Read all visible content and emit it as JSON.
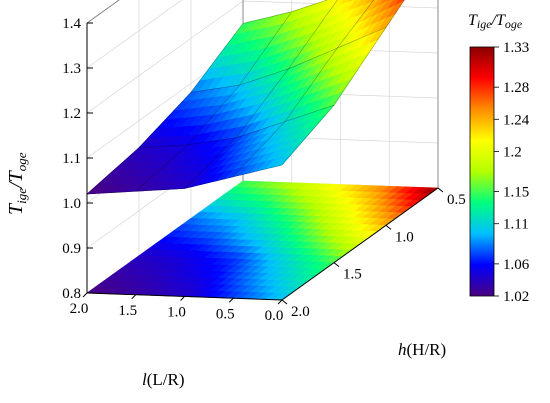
{
  "chart_data": {
    "type": "surface3d",
    "z_axis": {
      "label_main": "T",
      "label_sub1": "ige",
      "label_sep": "/T",
      "label_sub2": "oge",
      "range": [
        0.8,
        1.4
      ],
      "ticks": [
        "0.8",
        "0.9",
        "1.0",
        "1.1",
        "1.2",
        "1.3",
        "1.4"
      ]
    },
    "l_axis": {
      "label_main": "l",
      "label_rest": "(L/R)",
      "range": [
        0.0,
        2.0
      ],
      "ticks": [
        "2.0",
        "1.5",
        "1.0",
        "0.5",
        "0.0"
      ]
    },
    "h_axis": {
      "label_main": "h",
      "label_rest": "(H/R)",
      "range": [
        0.5,
        2.0
      ],
      "ticks": [
        "0.5",
        "1.0",
        "1.5",
        "2.0"
      ]
    },
    "colorbar": {
      "title_main": "T",
      "title_sub1": "ige",
      "title_sep": "/T",
      "title_sub2": "oge",
      "range": [
        1.02,
        1.33
      ],
      "ticks": [
        "1.33",
        "1.28",
        "1.24",
        "1.2",
        "1.15",
        "1.11",
        "1.06",
        "1.02"
      ],
      "colors": [
        "#4b0082",
        "#0000ff",
        "#00bfff",
        "#00ff7f",
        "#b4ff00",
        "#ffff00",
        "#ff8c00",
        "#ff0000",
        "#8b0000"
      ]
    },
    "l_values": [
      0.0,
      0.5,
      1.0,
      1.5,
      2.0
    ],
    "h_values": [
      0.5,
      1.0,
      1.5,
      2.0
    ],
    "surface_z": [
      [
        1.33,
        1.24,
        1.15,
        1.1
      ],
      [
        1.26,
        1.19,
        1.11,
        1.07
      ],
      [
        1.22,
        1.14,
        1.07,
        1.04
      ],
      [
        1.18,
        1.1,
        1.05,
        1.03
      ],
      [
        1.15,
        1.08,
        1.04,
        1.02
      ]
    ],
    "grid": true,
    "projection_on_floor": true
  }
}
